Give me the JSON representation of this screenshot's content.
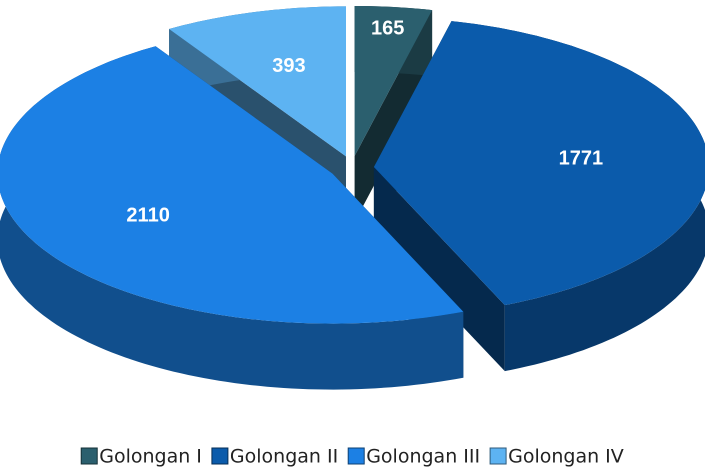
{
  "chart_data": {
    "type": "pie",
    "categories": [
      "Golongan I",
      "Golongan II",
      "Golongan III",
      "Golongan IV"
    ],
    "values": [
      165,
      1771,
      2110,
      393
    ],
    "colors": [
      "#2b5f6e",
      "#0b5bab",
      "#1c80e4",
      "#5db3f2"
    ]
  }
}
